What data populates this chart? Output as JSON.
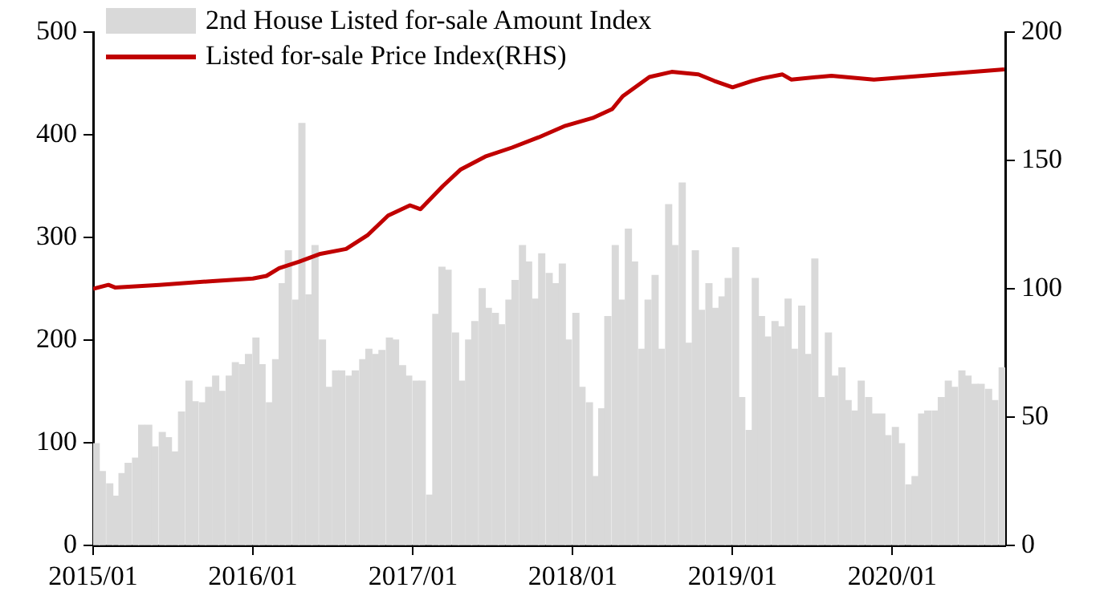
{
  "chart_data": {
    "type": "bar",
    "legend": "top left",
    "grid": false,
    "xlim": [
      "2015-01-01",
      "2020-09-15"
    ],
    "xticks": [
      {
        "value": "2015-01",
        "label": "2015/01"
      },
      {
        "value": "2016-01",
        "label": "2016/01"
      },
      {
        "value": "2017-01",
        "label": "2017/01"
      },
      {
        "value": "2018-01",
        "label": "2018/01"
      },
      {
        "value": "2019-01",
        "label": "2019/01"
      },
      {
        "value": "2020-01",
        "label": "2020/01"
      }
    ],
    "ylim": [
      0,
      500
    ],
    "yticks": [
      0,
      100,
      200,
      300,
      400,
      500
    ],
    "y2lim": [
      0,
      200
    ],
    "y2ticks": [
      0,
      50,
      100,
      150,
      200
    ],
    "series": [
      {
        "name": "2nd House Listed for-sale Amount Index",
        "color": "#d9d9d9",
        "x": [
          "2015-01-08",
          "2015-01-22",
          "2015-02-08",
          "2015-02-22",
          "2015-03-08",
          "2015-03-22",
          "2015-04-08",
          "2015-04-22",
          "2015-05-08",
          "2015-05-22",
          "2015-06-08",
          "2015-06-22",
          "2015-07-08",
          "2015-07-22",
          "2015-08-08",
          "2015-08-22",
          "2015-09-08",
          "2015-09-22",
          "2015-10-08",
          "2015-10-22",
          "2015-11-08",
          "2015-11-22",
          "2015-12-08",
          "2015-12-22",
          "2016-01-08",
          "2016-01-22",
          "2016-02-08",
          "2016-02-22",
          "2016-03-08",
          "2016-03-22",
          "2016-04-08",
          "2016-04-22",
          "2016-05-08",
          "2016-05-22",
          "2016-06-08",
          "2016-06-22",
          "2016-07-08",
          "2016-07-22",
          "2016-08-08",
          "2016-08-22",
          "2016-09-08",
          "2016-09-22",
          "2016-10-08",
          "2016-10-22",
          "2016-11-08",
          "2016-11-22",
          "2016-12-08",
          "2016-12-22",
          "2017-01-08",
          "2017-01-22",
          "2017-02-08",
          "2017-02-22",
          "2017-03-08",
          "2017-03-22",
          "2017-04-08",
          "2017-04-22",
          "2017-05-08",
          "2017-05-22",
          "2017-06-08",
          "2017-06-22",
          "2017-07-08",
          "2017-07-22",
          "2017-08-08",
          "2017-08-22",
          "2017-09-08",
          "2017-09-22",
          "2017-10-08",
          "2017-10-22",
          "2017-11-08",
          "2017-11-22",
          "2017-12-08",
          "2017-12-22",
          "2018-01-08",
          "2018-01-22",
          "2018-02-08",
          "2018-02-22",
          "2018-03-08",
          "2018-03-22",
          "2018-04-08",
          "2018-04-22",
          "2018-05-08",
          "2018-05-22",
          "2018-06-08",
          "2018-06-22",
          "2018-07-08",
          "2018-07-22",
          "2018-08-08",
          "2018-08-22",
          "2018-09-08",
          "2018-09-22",
          "2018-10-08",
          "2018-10-22",
          "2018-11-08",
          "2018-11-22",
          "2018-12-08",
          "2018-12-22",
          "2019-01-08",
          "2019-01-22",
          "2019-02-08",
          "2019-02-22",
          "2019-03-08",
          "2019-03-22",
          "2019-04-08",
          "2019-04-22",
          "2019-05-08",
          "2019-05-22",
          "2019-06-08",
          "2019-06-22",
          "2019-07-08",
          "2019-07-22",
          "2019-08-08",
          "2019-08-22",
          "2019-09-08",
          "2019-09-22",
          "2019-10-08",
          "2019-10-22",
          "2019-11-08",
          "2019-11-22",
          "2019-12-08",
          "2019-12-22",
          "2020-01-08",
          "2020-01-22",
          "2020-02-08",
          "2020-02-22",
          "2020-03-08",
          "2020-03-22",
          "2020-04-08",
          "2020-04-22",
          "2020-05-08",
          "2020-05-22",
          "2020-06-08",
          "2020-06-22",
          "2020-07-08",
          "2020-07-22",
          "2020-08-08",
          "2020-08-22",
          "2020-09-08"
        ],
        "values": [
          99,
          72,
          60,
          48,
          70,
          80,
          85,
          117,
          117,
          96,
          110,
          105,
          91,
          130,
          160,
          140,
          139,
          154,
          165,
          150,
          165,
          178,
          176,
          186,
          202,
          176,
          139,
          181,
          255,
          287,
          239,
          411,
          244,
          292,
          200,
          154,
          170,
          170,
          165,
          170,
          181,
          191,
          186,
          190,
          202,
          200,
          175,
          165,
          160,
          160,
          49,
          225,
          271,
          268,
          207,
          160,
          200,
          218,
          250,
          231,
          226,
          215,
          239,
          258,
          292,
          276,
          240,
          284,
          265,
          255,
          274,
          200,
          226,
          154,
          139,
          67,
          133,
          223,
          292,
          239,
          308,
          276,
          191,
          239,
          263,
          191,
          332,
          292,
          353,
          197,
          287,
          229,
          255,
          231,
          242,
          260,
          290,
          144,
          112,
          260,
          223,
          203,
          218,
          213,
          240,
          191,
          233,
          186,
          279,
          144,
          207,
          165,
          173,
          141,
          131,
          160,
          144,
          128,
          128,
          107,
          115,
          99,
          59,
          67,
          128,
          131,
          131,
          144,
          160,
          154,
          170,
          165,
          157,
          157,
          152,
          141,
          173
        ]
      },
      {
        "name": "Listed for-sale Price Index(RHS)",
        "type": "line",
        "axis": "y2",
        "color": "#c00000",
        "marker": "none",
        "line_style": "solid",
        "x": [
          "2015-01-01",
          "2015-02-05",
          "2015-02-20",
          "2015-06-01",
          "2015-10-01",
          "2016-01-01",
          "2016-02-01",
          "2016-03-01",
          "2016-04-15",
          "2016-06-01",
          "2016-08-01",
          "2016-09-20",
          "2016-11-05",
          "2016-12-25",
          "2017-01-18",
          "2017-03-10",
          "2017-04-20",
          "2017-06-15",
          "2017-08-15",
          "2017-10-15",
          "2017-12-15",
          "2018-02-15",
          "2018-04-01",
          "2018-04-25",
          "2018-06-25",
          "2018-08-15",
          "2018-10-15",
          "2018-11-20",
          "2019-01-01",
          "2019-02-15",
          "2019-03-10",
          "2019-04-25",
          "2019-05-15",
          "2019-08-15",
          "2019-11-20",
          "2020-03-10",
          "2020-09-13"
        ],
        "values": [
          100,
          101.5,
          100.5,
          101.5,
          103,
          104,
          105,
          108,
          110.5,
          113.5,
          115.5,
          121,
          128.5,
          132.5,
          131,
          140,
          146.5,
          151.5,
          155,
          159,
          163.5,
          166.5,
          170,
          175,
          182.5,
          184.5,
          183.5,
          181,
          178.5,
          181,
          182,
          183.5,
          181.5,
          183,
          181.5,
          183,
          185.5
        ]
      }
    ]
  }
}
